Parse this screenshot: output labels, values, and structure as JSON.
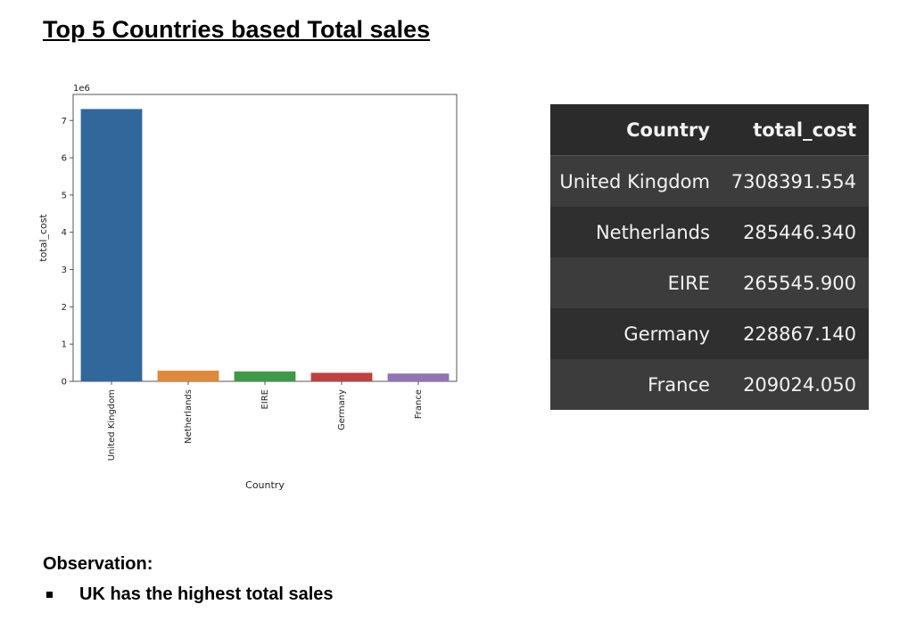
{
  "page": {
    "title": "Top 5 Countries based Total sales",
    "observation_heading": "Observation:",
    "observations": [
      "UK has the highest total sales"
    ]
  },
  "chart_data": {
    "type": "bar",
    "categories": [
      "United Kingdom",
      "Netherlands",
      "EIRE",
      "Germany",
      "France"
    ],
    "values": [
      7308391.554,
      285446.34,
      265545.9,
      228867.14,
      209024.05
    ],
    "colors": [
      "#31689b",
      "#e0893a",
      "#3d9a47",
      "#c0403f",
      "#9074b3"
    ],
    "xlabel": "Country",
    "ylabel": "total_cost",
    "ylim": [
      0,
      7700000
    ],
    "yticks": [
      "0",
      "1",
      "2",
      "3",
      "4",
      "5",
      "6",
      "7"
    ],
    "scale_label": "1e6",
    "grid": false
  },
  "table": {
    "columns": [
      "Country",
      "total_cost"
    ],
    "rows": [
      [
        "United Kingdom",
        "7308391.554"
      ],
      [
        "Netherlands",
        "285446.340"
      ],
      [
        "EIRE",
        "265545.900"
      ],
      [
        "Germany",
        "228867.140"
      ],
      [
        "France",
        "209024.050"
      ]
    ]
  }
}
